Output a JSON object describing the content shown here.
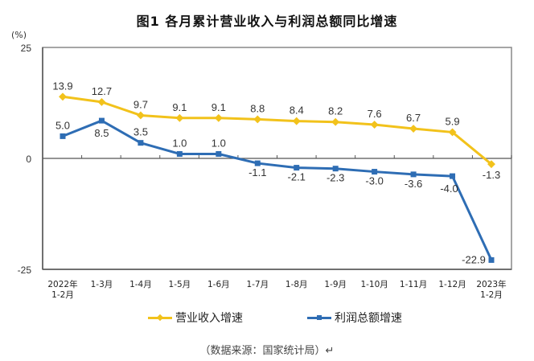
{
  "title": "图1  各月累计营业收入与利润总额同比增速",
  "unit_label": "(%)",
  "source_note": "（数据来源：国家统计局）↵",
  "colors": {
    "revenue": "#F2C21B",
    "profit": "#2E6DB4",
    "axis": "#555555",
    "frame": "#888888"
  },
  "legend": [
    {
      "label": "营业收入增速",
      "color": "#F2C21B"
    },
    {
      "label": "利润总额增速",
      "color": "#2E6DB4"
    }
  ],
  "chart_data": {
    "type": "line",
    "title": "图1  各月累计营业收入与利润总额同比增速",
    "xlabel": "",
    "ylabel": "(%)",
    "ylim": [
      -25,
      25
    ],
    "yticks": [
      25,
      0,
      -25
    ],
    "grid": false,
    "legend_position": "bottom",
    "categories": [
      "2022年\n1-2月",
      "1-3月",
      "1-4月",
      "1-5月",
      "1-6月",
      "1-7月",
      "1-8月",
      "1-9月",
      "1-10月",
      "1-11月",
      "1-12月",
      "2023年\n1-2月"
    ],
    "series": [
      {
        "name": "营业收入增速",
        "color": "#F2C21B",
        "values": [
          13.9,
          12.7,
          9.7,
          9.1,
          9.1,
          8.8,
          8.4,
          8.2,
          7.6,
          6.7,
          5.9,
          -1.3
        ]
      },
      {
        "name": "利润总额增速",
        "color": "#2E6DB4",
        "values": [
          5.0,
          8.5,
          3.5,
          1.0,
          1.0,
          -1.1,
          -2.1,
          -2.3,
          -3.0,
          -3.6,
          -4.0,
          -22.9
        ]
      }
    ]
  }
}
